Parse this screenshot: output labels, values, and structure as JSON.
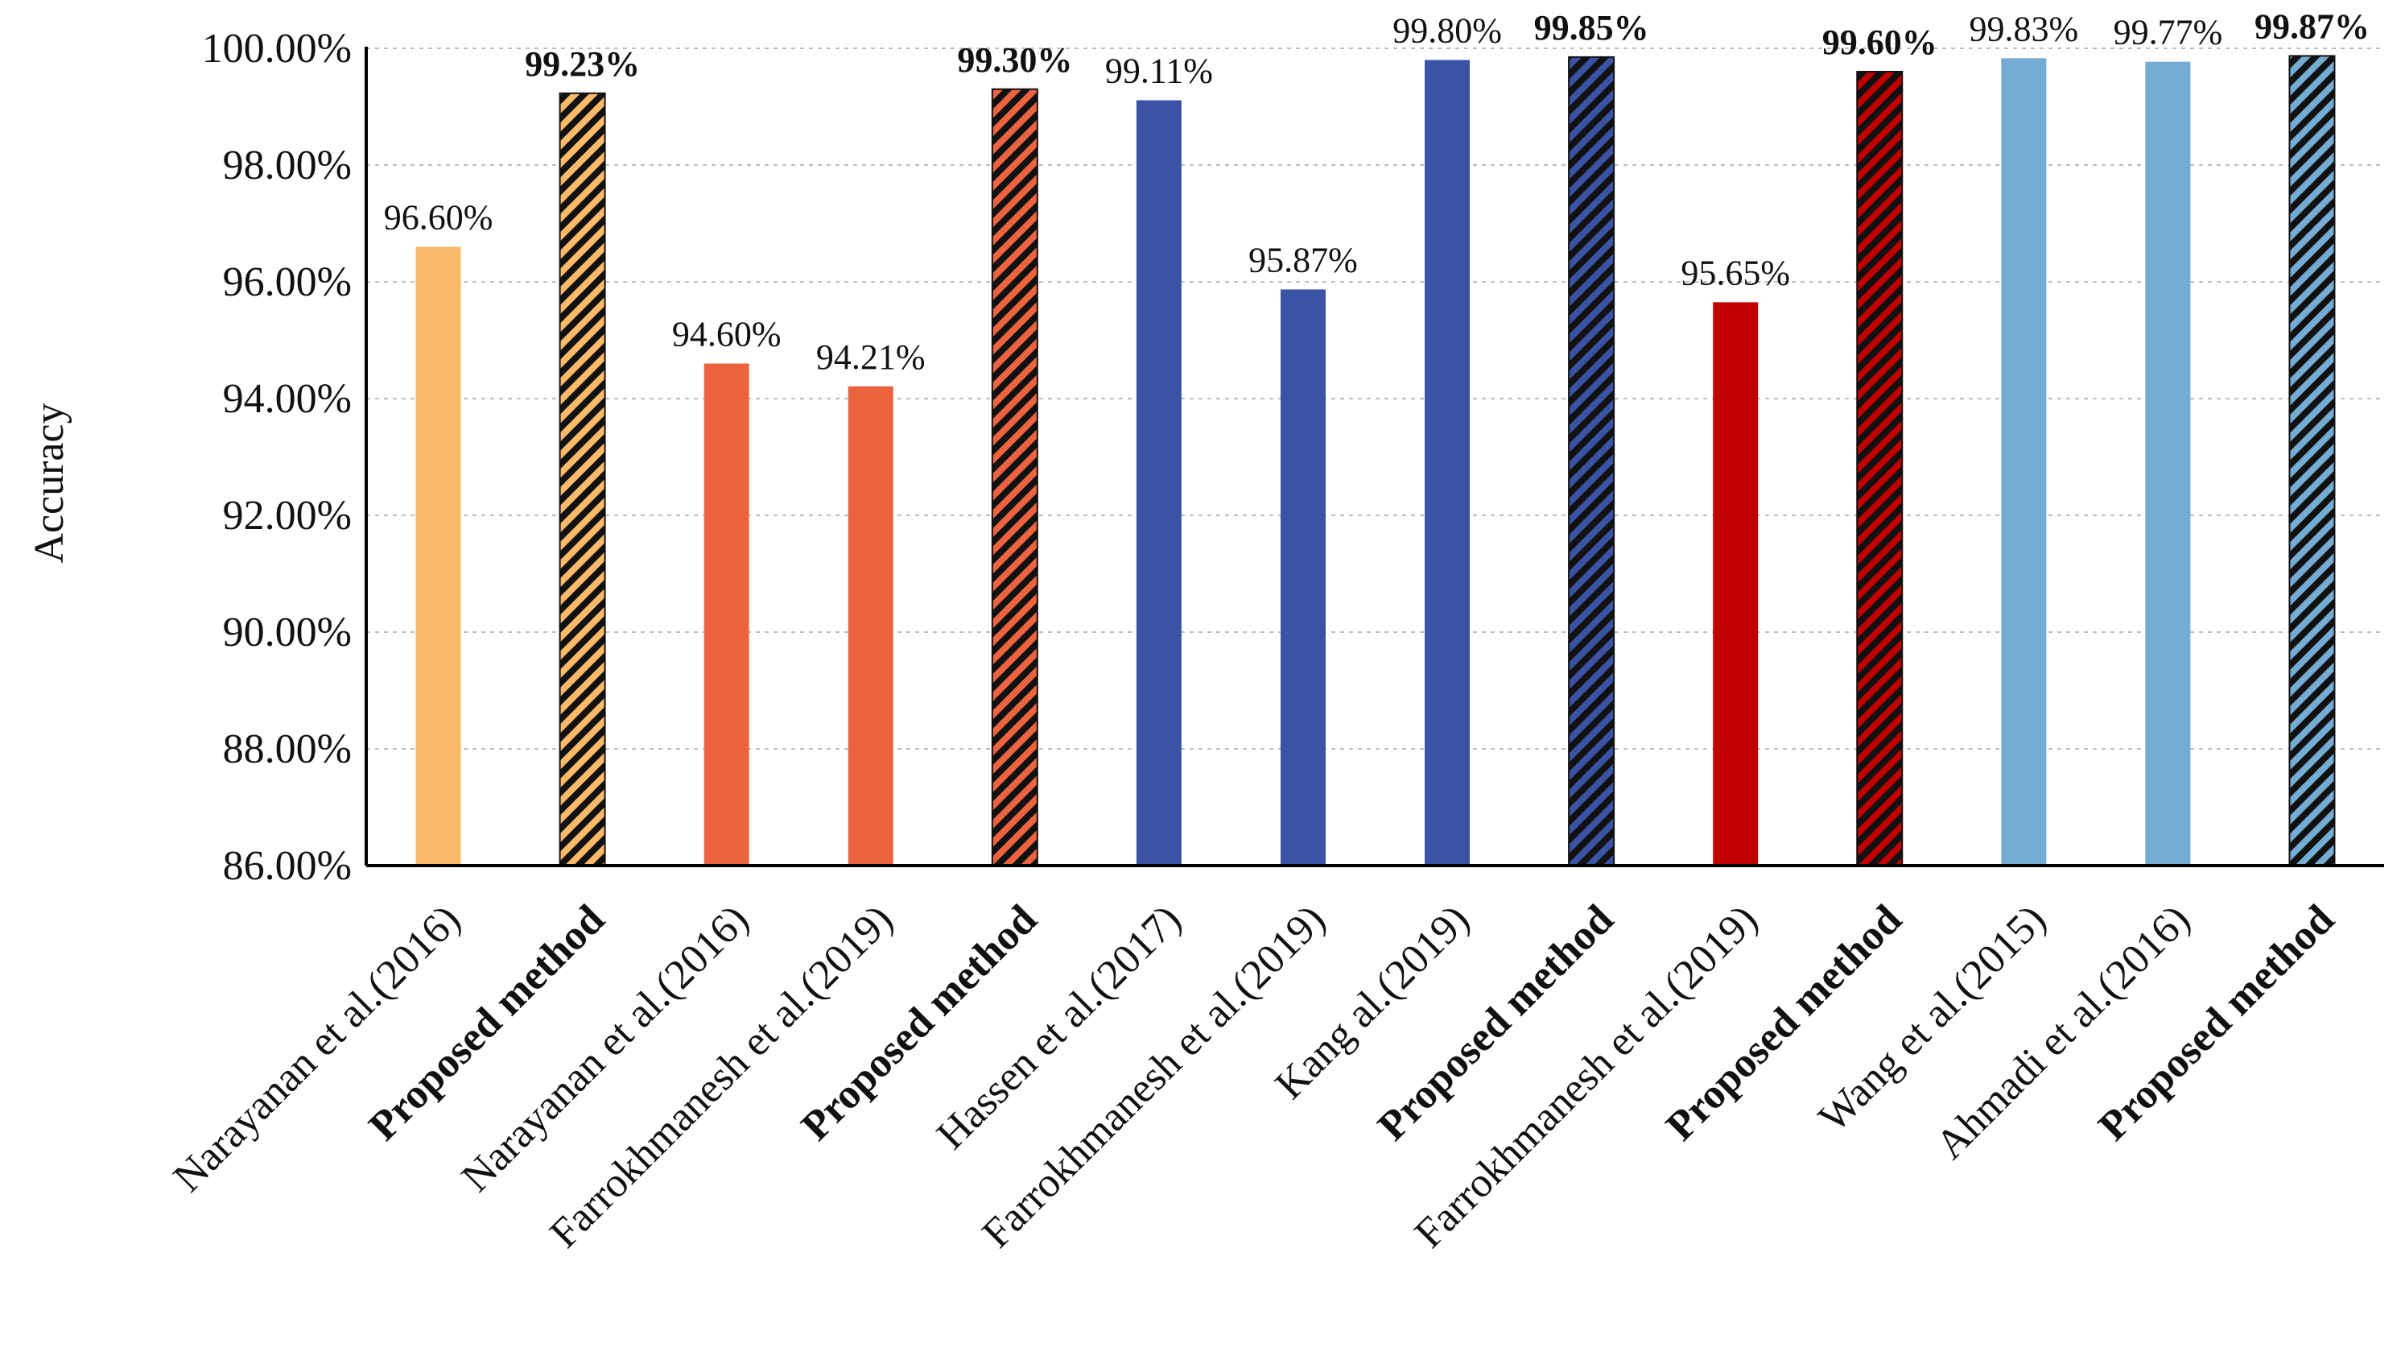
{
  "chart_data": {
    "type": "bar",
    "title": "",
    "xlabel": "",
    "ylabel": "Accuracy",
    "ylim": [
      86,
      100
    ],
    "yticks": [
      86,
      88,
      90,
      92,
      94,
      96,
      98,
      100
    ],
    "ytick_labels": [
      "86.00%",
      "88.00%",
      "90.00%",
      "92.00%",
      "94.00%",
      "96.00%",
      "98.00%",
      "100.00%"
    ],
    "grid": true,
    "categories": [
      "Narayanan et al.(2016)",
      "Proposed method",
      "Narayanan et al.(2016)",
      "Farrokhmanesh et al.(2019)",
      "Proposed method",
      "Hassen et al.(2017)",
      "Farrokhmanesh et al.(2019)",
      "Kang al.(2019)",
      "Proposed method",
      "Farrokhmanesh et al.(2019)",
      "Proposed method",
      "Wang et al.(2015)",
      "Ahmadi et al.(2016)",
      "Proposed method"
    ],
    "values": [
      96.6,
      99.23,
      94.6,
      94.21,
      99.3,
      99.11,
      95.87,
      99.8,
      99.85,
      95.65,
      99.6,
      99.83,
      99.77,
      99.87
    ],
    "data_labels": [
      "96.60%",
      "99.23%",
      "94.60%",
      "94.21%",
      "99.30%",
      "99.11%",
      "95.87%",
      "99.80%",
      "99.85%",
      "95.65%",
      "99.60%",
      "99.83%",
      "99.77%",
      "99.87%"
    ],
    "colors": [
      "#FBB96A",
      "#FBB96A",
      "#EC6340",
      "#EC6340",
      "#EC6340",
      "#3A53A4",
      "#3A53A4",
      "#3A53A4",
      "#3A53A4",
      "#C00000",
      "#C00000",
      "#74ACD4",
      "#74ACD4",
      "#74ACD4"
    ],
    "hatched": [
      false,
      true,
      false,
      false,
      true,
      false,
      false,
      false,
      true,
      false,
      true,
      false,
      false,
      true
    ],
    "bold": [
      false,
      true,
      false,
      false,
      true,
      false,
      false,
      false,
      true,
      false,
      true,
      false,
      false,
      true
    ]
  }
}
